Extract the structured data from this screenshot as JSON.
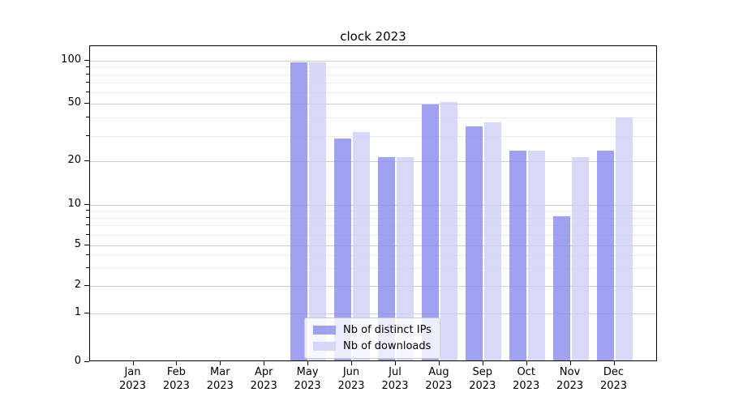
{
  "chart_data": {
    "type": "bar",
    "title": "clock 2023",
    "year": "2023",
    "categories": [
      "Jan",
      "Feb",
      "Mar",
      "Apr",
      "May",
      "Jun",
      "Jul",
      "Aug",
      "Sep",
      "Oct",
      "Nov",
      "Dec"
    ],
    "series": [
      {
        "name": "Nb of distinct IPs",
        "color": "rgba(138,138,238,0.8)",
        "values": [
          0,
          0,
          0,
          0,
          94,
          28,
          21,
          48,
          34,
          23,
          8,
          23
        ]
      },
      {
        "name": "Nb of downloads",
        "color": "rgba(206,206,247,0.8)",
        "values": [
          0,
          0,
          0,
          0,
          94,
          31,
          21,
          50,
          36,
          23,
          21,
          39
        ]
      }
    ],
    "yaxis": {
      "ticks": [
        0,
        1,
        2,
        5,
        10,
        20,
        50,
        100
      ],
      "minor_ticks": [
        3,
        4,
        6,
        7,
        8,
        9,
        30,
        40,
        60,
        70,
        80,
        90
      ],
      "scale": "symlog",
      "ylim": [
        0,
        125
      ]
    },
    "xaxis": {
      "label_format": "month over year"
    },
    "legend_position": "lower center",
    "grid": true
  }
}
